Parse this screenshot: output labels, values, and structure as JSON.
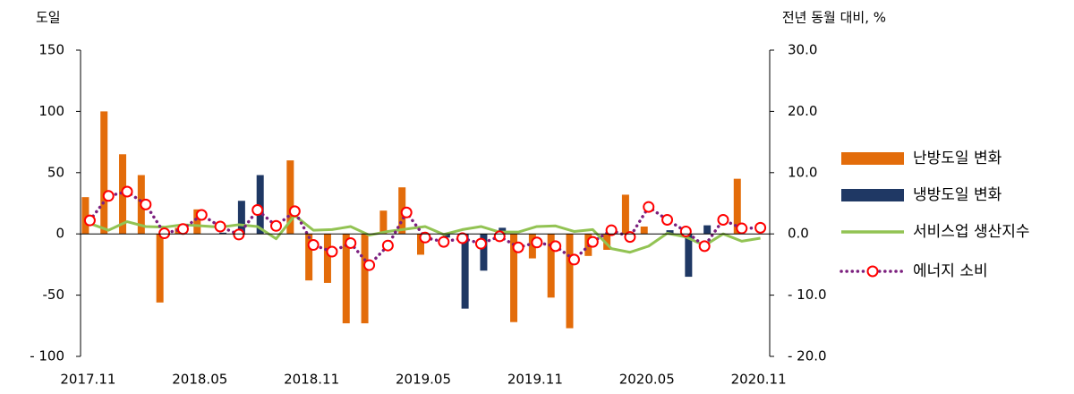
{
  "chart_data": {
    "type": "combo",
    "y_label": "도일",
    "y2_label": "전년 동월 대비, %",
    "categories": [
      "2017.11",
      null,
      null,
      null,
      null,
      null,
      "2018.05",
      null,
      null,
      null,
      null,
      null,
      "2018.11",
      null,
      null,
      null,
      null,
      null,
      "2019.05",
      null,
      null,
      null,
      null,
      null,
      "2019.11",
      null,
      null,
      null,
      null,
      null,
      "2020.05",
      null,
      null,
      null,
      null,
      null,
      "2020.11"
    ],
    "ylim": [
      -100,
      150
    ],
    "yticks": [
      {
        "value": -100,
        "label": "- 100"
      },
      {
        "value": -50,
        "label": "-50"
      },
      0,
      50,
      100,
      150
    ],
    "y2lim": [
      -20,
      30
    ],
    "y2ticks": [
      {
        "value": -20,
        "label": "- 20.0"
      },
      {
        "value": -10,
        "label": "- 10.0"
      },
      {
        "value": 0,
        "label": "0.0"
      },
      {
        "value": 10,
        "label": "10.0"
      },
      {
        "value": 20,
        "label": "20.0"
      },
      {
        "value": 30,
        "label": "30.0"
      }
    ],
    "legend": "right",
    "series": [
      {
        "name": "난방도일 변화",
        "type": "bar",
        "color": "#e36c0a",
        "values": [
          30,
          100,
          65,
          48,
          -56,
          5,
          20,
          null,
          null,
          null,
          null,
          60,
          -38,
          -40,
          -73,
          -73,
          19,
          38,
          -17,
          null,
          null,
          null,
          null,
          -72,
          -20,
          -52,
          -77,
          -18,
          -13,
          32,
          6,
          null,
          null,
          null,
          null,
          45,
          null
        ]
      },
      {
        "name": "냉방도일 변화",
        "type": "bar",
        "color": "#1f3864",
        "values": [
          null,
          null,
          null,
          null,
          null,
          null,
          null,
          1,
          27,
          48,
          null,
          null,
          null,
          null,
          null,
          null,
          null,
          null,
          null,
          -3,
          -61,
          -30,
          5,
          null,
          null,
          null,
          null,
          null,
          null,
          null,
          null,
          3,
          -35,
          7,
          null,
          null,
          null
        ]
      },
      {
        "name": "서비스업 생산지수",
        "type": "line",
        "axis": "y2",
        "color": "#92c353",
        "values": [
          1.7,
          0.6,
          2.0,
          1.2,
          1.1,
          1.5,
          1.3,
          1.1,
          1.5,
          1.2,
          -0.8,
          3.0,
          0.6,
          0.7,
          1.2,
          -0.2,
          0.4,
          0.8,
          1.2,
          -0.1,
          0.7,
          1.2,
          0.3,
          0.3,
          1.2,
          1.3,
          0.4,
          0.7,
          -2.4,
          -3.0,
          -2.0,
          0.1,
          -0.5,
          -1.9,
          0.0,
          -1.2,
          -0.7
        ]
      },
      {
        "name": "에너지 소비",
        "type": "line",
        "axis": "y2",
        "color": "#7b1f7e",
        "style": "dotted",
        "marker": "circle",
        "marker_color": "#ff0000",
        "values": [
          2.2,
          6.2,
          6.9,
          4.8,
          0.1,
          0.8,
          3.1,
          1.2,
          -0.1,
          3.9,
          1.3,
          3.7,
          -1.8,
          -2.9,
          -1.5,
          -5.1,
          -1.9,
          3.5,
          -0.6,
          -1.3,
          -0.7,
          -1.6,
          -0.4,
          -2.2,
          -1.4,
          -2.0,
          -4.2,
          -1.3,
          0.6,
          -0.5,
          4.4,
          2.3,
          0.4,
          -2.0,
          2.3,
          0.9,
          1.0
        ]
      }
    ]
  }
}
